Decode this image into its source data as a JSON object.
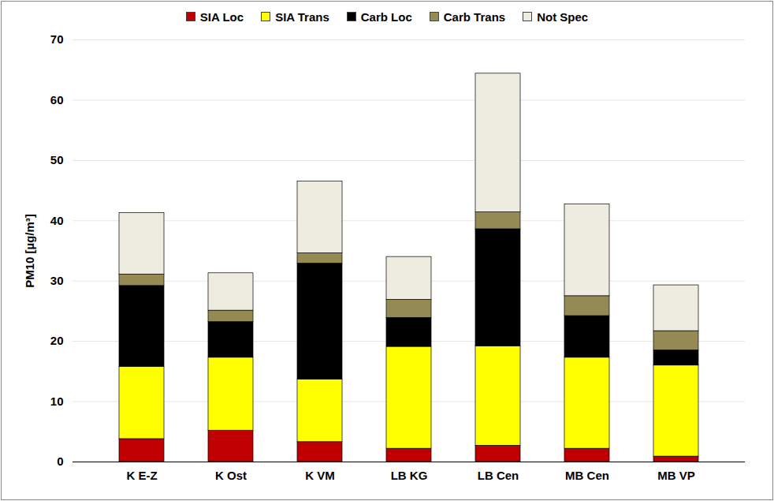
{
  "chart_data": {
    "type": "bar",
    "stacked": true,
    "y_label": "PM10 [µg/m³]",
    "categories": [
      "K E-Z",
      "K Ost",
      "K VM",
      "LB KG",
      "LB Cen",
      "MB Cen",
      "MB VP"
    ],
    "series": [
      {
        "name": "SIA Loc",
        "color": "#c00000",
        "values": [
          3.8,
          5.2,
          3.3,
          2.2,
          2.7,
          2.2,
          0.9
        ]
      },
      {
        "name": "SIA Trans",
        "color": "#ffff00",
        "values": [
          12.0,
          12.1,
          10.4,
          16.9,
          16.5,
          15.1,
          15.1
        ]
      },
      {
        "name": "Carb Loc",
        "color": "#000000",
        "values": [
          13.4,
          5.9,
          19.2,
          4.8,
          19.4,
          6.9,
          2.5
        ]
      },
      {
        "name": "Carb Trans",
        "color": "#948a54",
        "values": [
          1.9,
          1.9,
          1.7,
          3.0,
          2.8,
          3.3,
          3.2
        ]
      },
      {
        "name": "Not Spec",
        "color": "#eeece1",
        "values": [
          10.2,
          6.2,
          11.9,
          7.1,
          23.0,
          15.2,
          7.6
        ]
      }
    ],
    "ylim": [
      0,
      70
    ],
    "yticks": [
      0,
      10,
      20,
      30,
      40,
      50,
      60,
      70
    ],
    "grid": true,
    "legend": "top"
  }
}
